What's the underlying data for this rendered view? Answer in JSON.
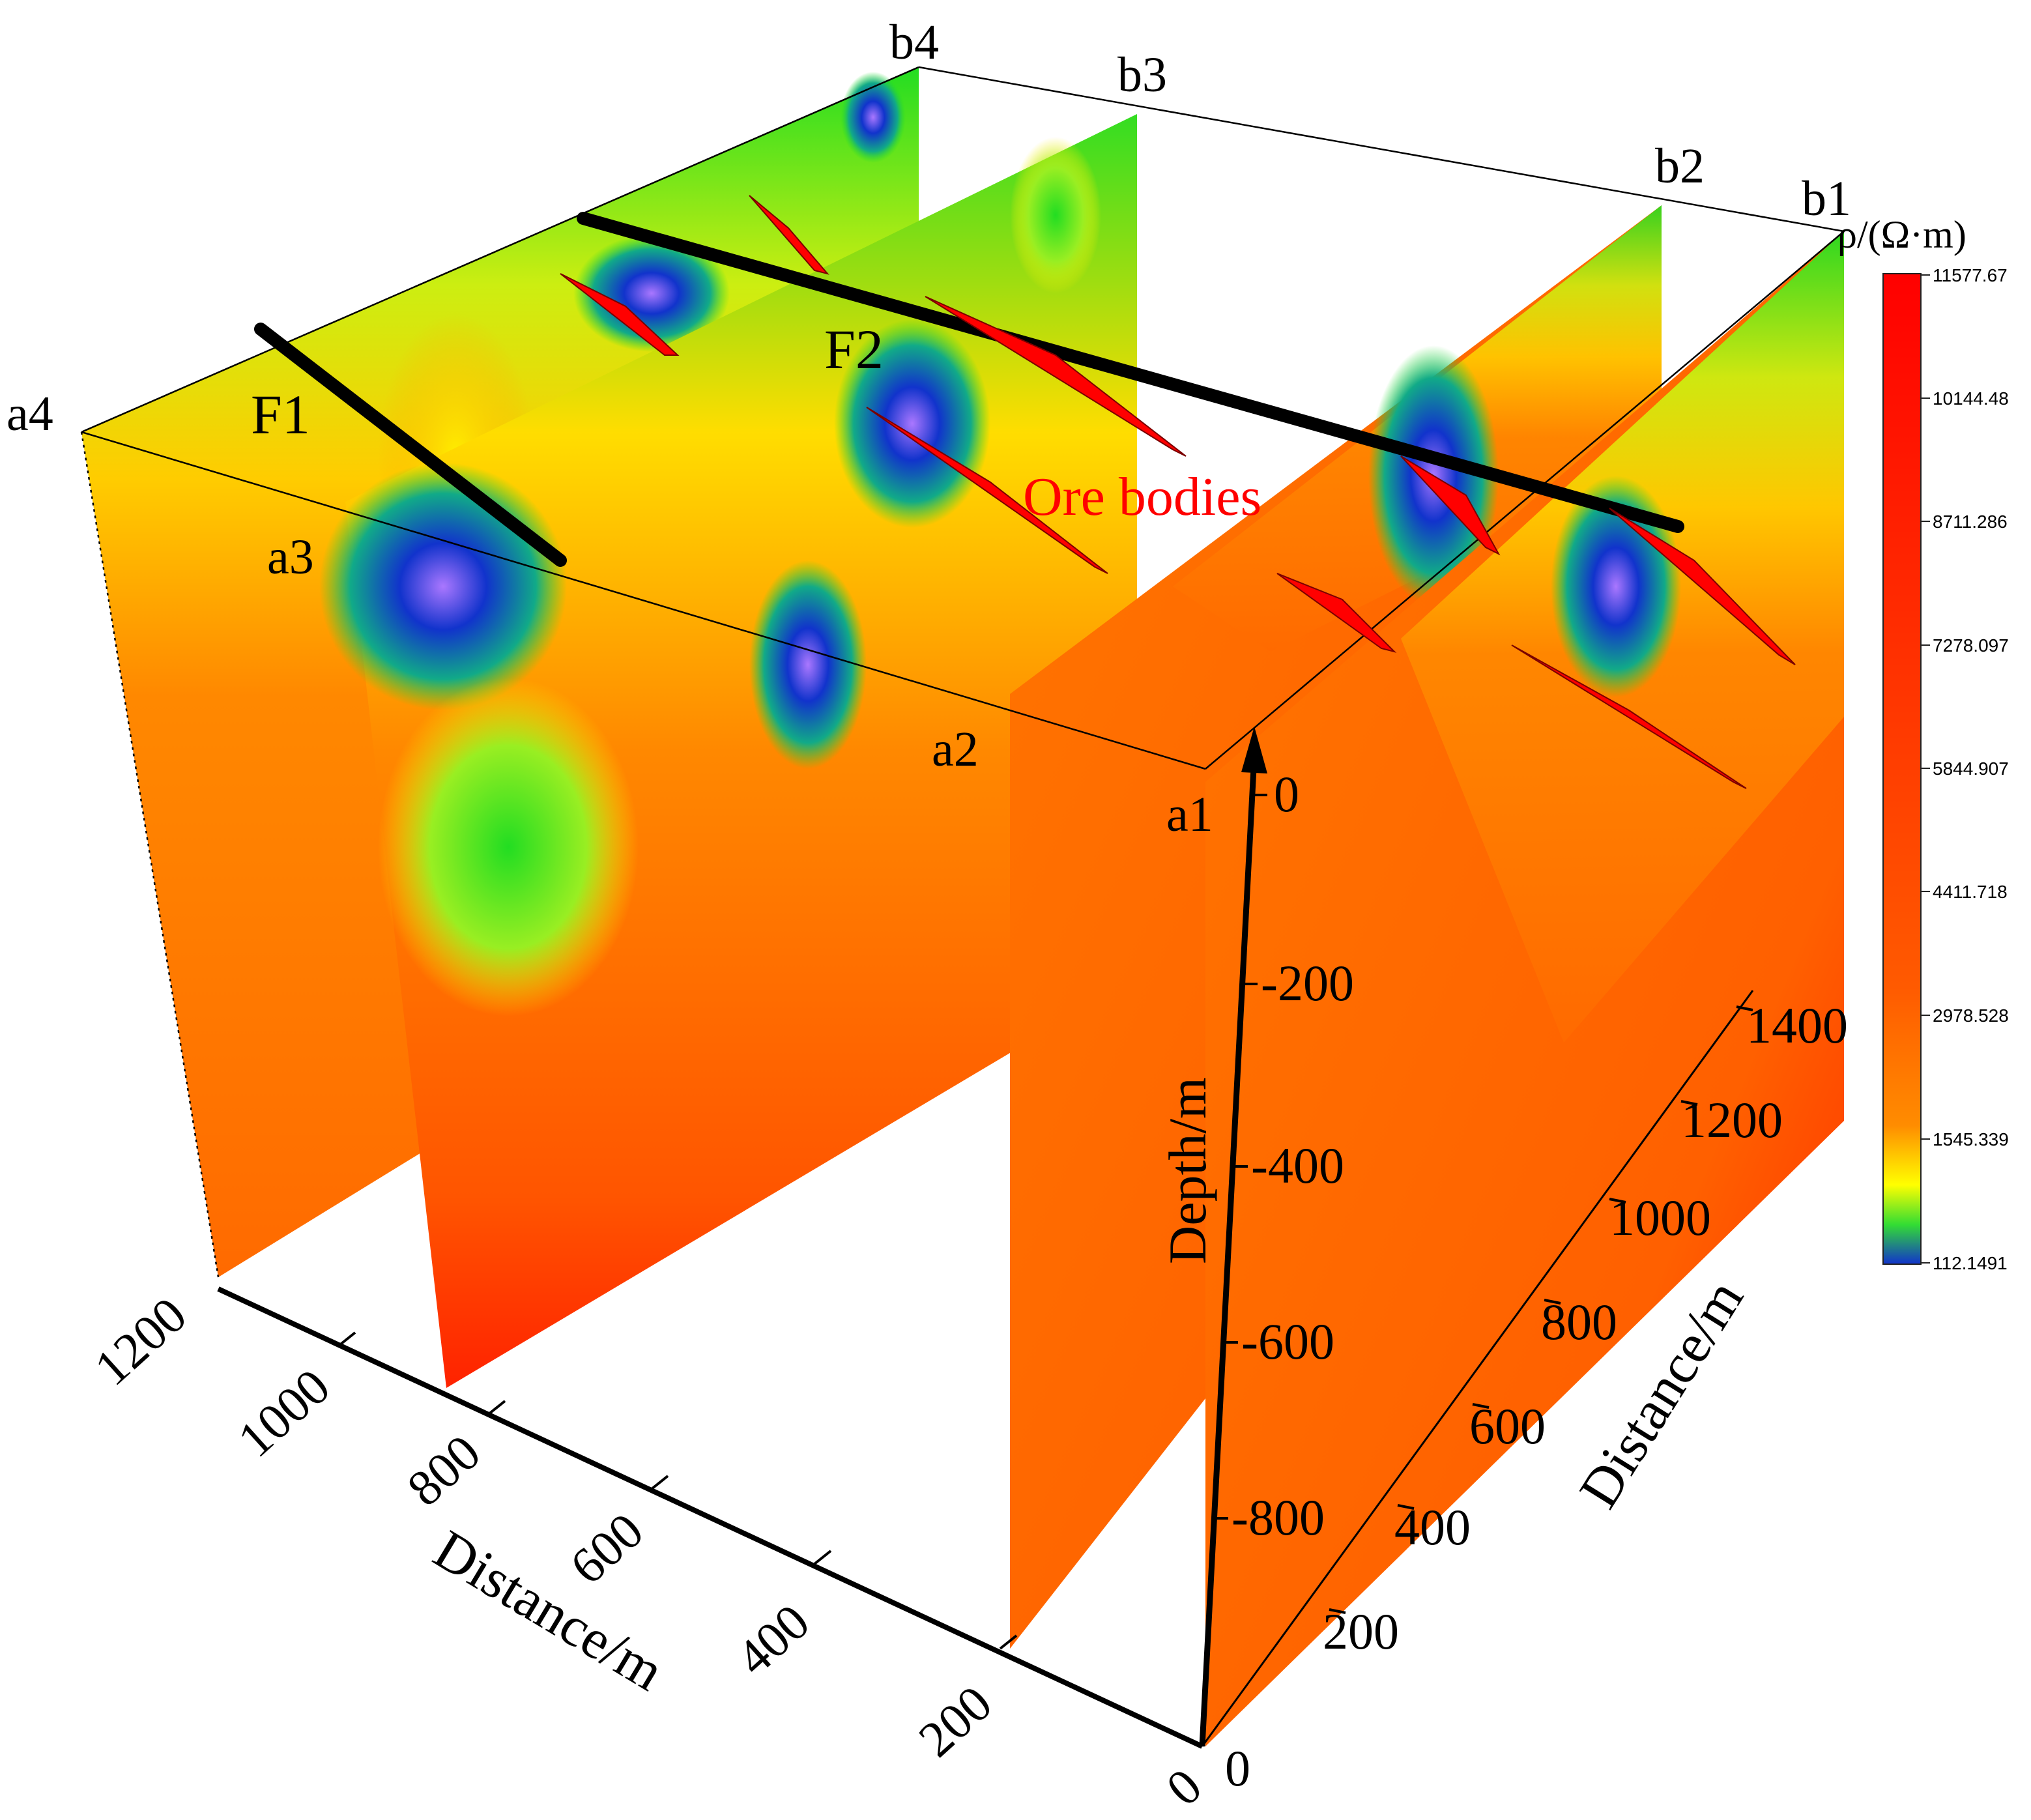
{
  "profile_labels": {
    "a1": "a1",
    "a2": "a2",
    "a3": "a3",
    "a4": "a4",
    "b1": "b1",
    "b2": "b2",
    "b3": "b3",
    "b4": "b4"
  },
  "fault_labels": {
    "f1": "F1",
    "f2": "F2"
  },
  "ore_label": "Ore bodies",
  "axes": {
    "depth": {
      "label": "Depth/m",
      "ticks": [
        "0",
        "-200",
        "-400",
        "-600",
        "-800"
      ]
    },
    "distance_left": {
      "label": "Distance/m",
      "ticks": [
        "0",
        "200",
        "400",
        "600",
        "800",
        "1000",
        "1200"
      ]
    },
    "distance_right": {
      "label": "Distance/m",
      "ticks": [
        "0",
        "200",
        "400",
        "600",
        "800",
        "1000",
        "1200",
        "1400"
      ]
    }
  },
  "colorbar": {
    "title": "ρ/(Ω·m)",
    "ticks": [
      "11577.67",
      "10144.48",
      "8711.286",
      "7278.097",
      "5844.907",
      "4411.718",
      "2978.528",
      "1545.339",
      "112.1491"
    ]
  },
  "colors": {
    "high": "#ff2a00",
    "mid": "#ff6a00",
    "yellow": "#ffee00",
    "green": "#22dd22",
    "blue": "#1133cc",
    "violet": "#aa66ff",
    "ore": "#ff0000"
  }
}
